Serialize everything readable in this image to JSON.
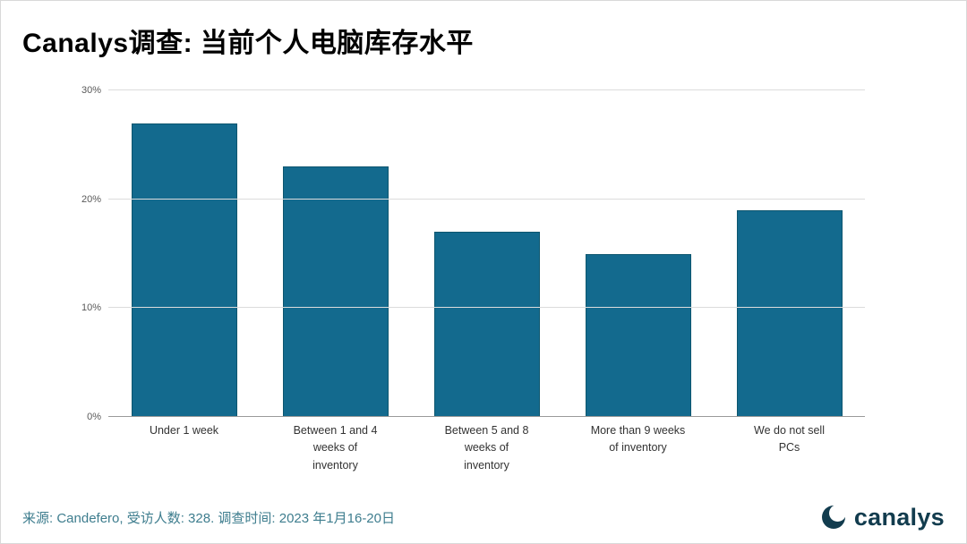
{
  "header": {
    "title": "Canalys调查: 当前个人电脑库存水平"
  },
  "chart_data": {
    "type": "bar",
    "categories": [
      "Under 1 week",
      "Between 1 and 4\nweeks of\ninventory",
      "Between 5 and 8\nweeks of\ninventory",
      "More than 9 weeks\nof inventory",
      "We do not sell\nPCs"
    ],
    "values": [
      27,
      23,
      17,
      15,
      19
    ],
    "title": "Canalys调查: 当前个人电脑库存水平",
    "xlabel": "",
    "ylabel": "",
    "ylim": [
      0,
      30
    ],
    "yticks": [
      0,
      10,
      20,
      30
    ],
    "ytick_labels": [
      "0%",
      "10%",
      "20%",
      "30%"
    ],
    "grid": true,
    "legend": "none",
    "bar_color": "#136a8e"
  },
  "footer": {
    "source": "来源: Candefero, 受访人数: 328. 调查时间: 2023 年1月16-20日",
    "logo_text": "canalys"
  },
  "colors": {
    "bar": "#136a8e",
    "bar_border": "#0d566f",
    "source_text": "#3e7d8e",
    "logo": "#123c4e",
    "gridline": "#dcdcdc"
  }
}
